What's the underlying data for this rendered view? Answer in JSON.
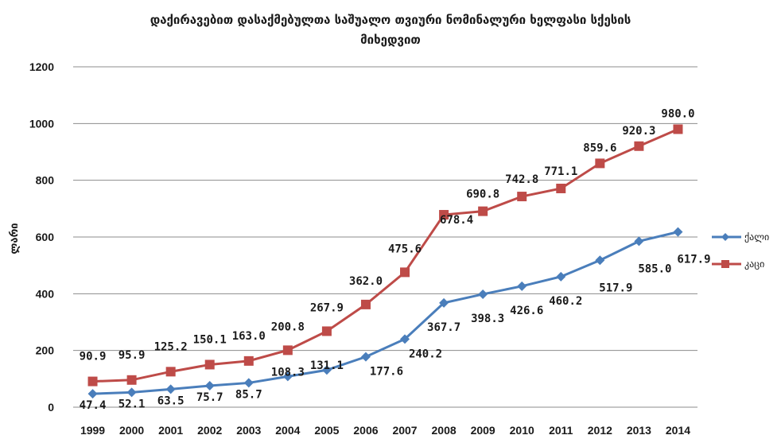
{
  "chart_data": {
    "type": "line",
    "title": "დაქირავებით დასაქმებულთა საშუალო თვიური ნომინალური ხელფასი სქესის მიხედვით",
    "title_lines": [
      "დაქირავებით დასაქმებულთა საშუალო თვიური ნომინალური ხელფასი სქესის",
      "მიხედვით"
    ],
    "xlabel": "",
    "ylabel": "ლარი",
    "categories": [
      "1999",
      "2000",
      "2001",
      "2002",
      "2003",
      "2004",
      "2005",
      "2006",
      "2007",
      "2008",
      "2009",
      "2010",
      "2011",
      "2012",
      "2013",
      "2014"
    ],
    "y_ticks": [
      0,
      200,
      400,
      600,
      800,
      1000,
      1200
    ],
    "ylim": [
      0,
      1200
    ],
    "grid": "horizontal",
    "legend_position": "right",
    "series": [
      {
        "name": "ქალი",
        "color": "#4a7ebb",
        "marker": "diamond",
        "values": [
          47.4,
          52.1,
          63.5,
          75.7,
          85.7,
          108.3,
          131.1,
          177.6,
          240.2,
          367.7,
          398.3,
          426.6,
          460.2,
          517.9,
          585.0,
          617.9
        ],
        "labels": [
          "47.4",
          "52.1",
          "63.5",
          "75.7",
          "85.7",
          "108.3",
          "131.1",
          "177.6",
          "240.2",
          "367.7",
          "398.3",
          "426.6",
          "460.2",
          "517.9",
          "585.0",
          "617.9"
        ]
      },
      {
        "name": "კაცი",
        "color": "#be4b48",
        "marker": "square",
        "values": [
          90.9,
          95.9,
          125.2,
          150.1,
          163.0,
          200.8,
          267.9,
          362.0,
          475.6,
          678.4,
          690.8,
          742.8,
          771.1,
          859.6,
          920.3,
          980.0
        ],
        "labels": [
          "90.9",
          "95.9",
          "125.2",
          "150.1",
          "163.0",
          "200.8",
          "267.9",
          "362.0",
          "475.6",
          "678.4",
          "690.8",
          "742.8",
          "771.1",
          "859.6",
          "920.3",
          "980.0"
        ]
      }
    ]
  }
}
